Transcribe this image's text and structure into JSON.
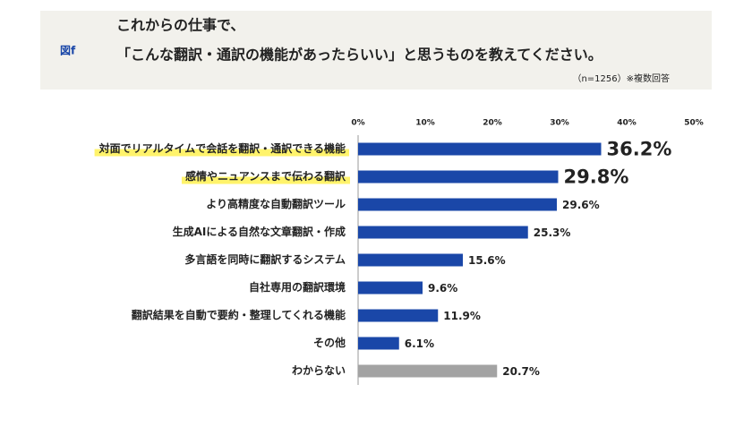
{
  "chart_data": {
    "type": "hbar",
    "figure_label": "図f",
    "title_lines": [
      "これからの仕事で、",
      "「こんな翻訳・通訳の機能があったらいい」と思うものを教えてください。"
    ],
    "note": "（n=1256）※複数回答",
    "categories": [
      "対面でリアルタイムで会話を翻訳・通訳できる機能",
      "感情やニュアンスまで伝わる翻訳",
      "より高精度な自動翻訳ツール",
      "生成AIによる自然な文章翻訳・作成",
      "多言語を同時に翻訳するシステム",
      "自社専用の翻訳環境",
      "翻訳結果を自動で要約・整理してくれる機能",
      "その他",
      "わからない"
    ],
    "values": [
      36.2,
      29.8,
      29.6,
      25.3,
      15.6,
      9.6,
      11.9,
      6.1,
      20.7
    ],
    "value_labels": [
      "36.2%",
      "29.8%",
      "29.6%",
      "25.3%",
      "15.6%",
      "9.6%",
      "11.9%",
      "6.1%",
      "20.7%"
    ],
    "colors": [
      "#1a47a8",
      "#1a47a8",
      "#1a47a8",
      "#1a47a8",
      "#1a47a8",
      "#1a47a8",
      "#1a47a8",
      "#1a47a8",
      "#a3a3a3"
    ],
    "highlight": [
      true,
      true,
      false,
      false,
      false,
      false,
      false,
      false,
      false
    ],
    "xlim": [
      0,
      50
    ],
    "xticks": [
      {
        "value": 0,
        "label": "0%"
      },
      {
        "value": 10,
        "label": "10%"
      },
      {
        "value": 20,
        "label": "20%"
      },
      {
        "value": 30,
        "label": "30%"
      },
      {
        "value": 40,
        "label": "40%"
      },
      {
        "value": 50,
        "label": "50%"
      }
    ]
  }
}
